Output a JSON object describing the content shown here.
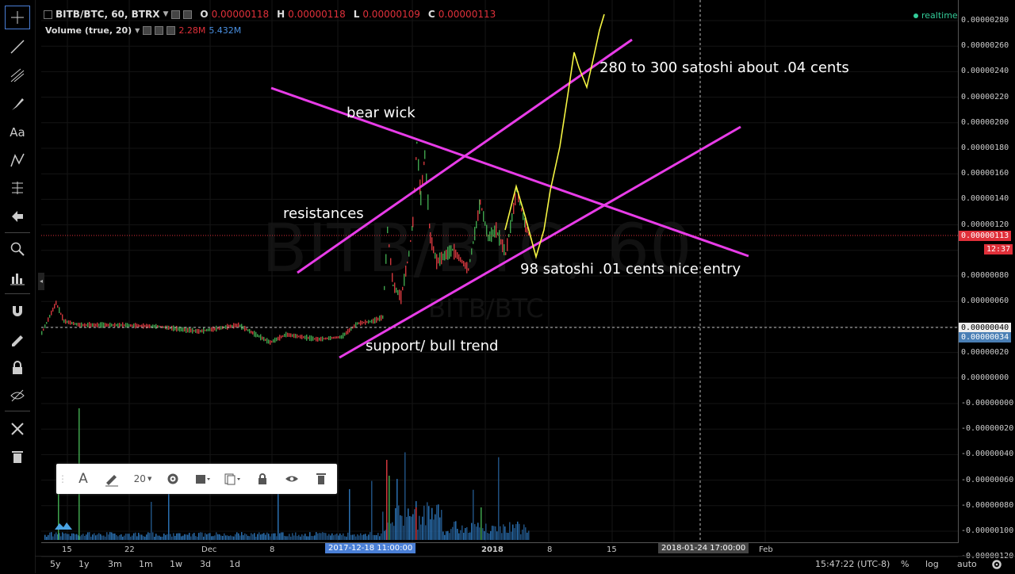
{
  "header": {
    "symbol": "BITB/BTC, 60, BTRX",
    "open_label": "O",
    "open": "0.00000118",
    "high_label": "H",
    "high": "0.00000118",
    "low_label": "L",
    "low": "0.00000109",
    "close_label": "C",
    "close": "0.00000113"
  },
  "volume": {
    "label": "Volume (true, 20)",
    "v1": "2.28M",
    "v2": "5.432M",
    "v1_color": "#e0303a",
    "v2_color": "#4a90e2"
  },
  "realtime": "realtime",
  "watermark": {
    "main": "BITB/BTC, 60",
    "sub": "BITB/BTC"
  },
  "price_axis": {
    "labels": [
      "0.00000280",
      "0.00000260",
      "0.00000240",
      "0.00000220",
      "0.00000200",
      "0.00000180",
      "0.00000160",
      "0.00000140",
      "0.00000120",
      "0.00000100",
      "0.00000080",
      "0.00000060",
      "0.00000040",
      "0.00000020",
      "0.00000000",
      "-0.00000000",
      "-0.00000020",
      "-0.00000040",
      "-0.00000060",
      "-0.00000080",
      "-0.00000100",
      "-0.00000120"
    ],
    "current_price": "0.00000113",
    "countdown": "12:37",
    "crosshair_price": "0.00000040",
    "other_price": "0.00000034",
    "current_color": "#e0303a",
    "other_color": "#4a7fb5"
  },
  "time_axis": {
    "labels": [
      "15",
      "22",
      "Dec",
      "8",
      "15",
      "2018",
      "8",
      "15",
      "Feb"
    ],
    "highlight_date": "2017-12-18 11:00:00",
    "crosshair_date": "2018-01-24 17:00:00",
    "highlight_color": "#4a7fd6"
  },
  "annotations": {
    "bear_wick": "bear wick",
    "resistances": "resistances",
    "target": "280 to 300 satoshi  about  .04 cents",
    "entry": "98 satoshi .01 cents nice entry",
    "support": "support/ bull trend",
    "line_color": "#e83ce8",
    "projection_color": "#f5f542"
  },
  "range_buttons": [
    "5y",
    "1y",
    "3m",
    "1m",
    "1w",
    "3d",
    "1d"
  ],
  "bottom_right": {
    "time": "15:47:22 (UTC-8)",
    "percent": "%",
    "log": "log",
    "auto": "auto"
  },
  "drawing_toolbar": {
    "font_size": "20"
  },
  "left_tools": [
    "crosshair-icon",
    "trend-line-icon",
    "pitchfork-icon",
    "brush-icon",
    "text-icon",
    "pattern-icon",
    "prediction-icon",
    "arrow-left-icon",
    "zoom-icon",
    "measure-icon",
    "magnet-icon",
    "lock-drawing-icon",
    "lock-icon",
    "eye-off-icon",
    "tools-icon",
    "trash-icon"
  ]
}
